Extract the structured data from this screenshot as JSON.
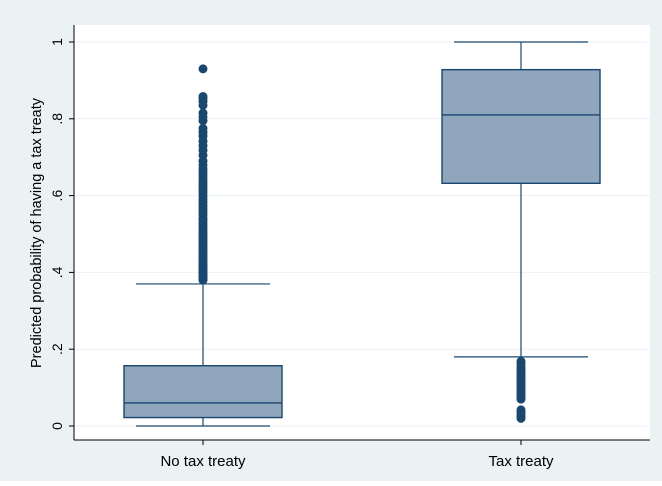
{
  "chart_data": {
    "type": "box",
    "ylabel": "Predicted probability of having a tax treaty",
    "ylim": [
      0,
      1
    ],
    "yticks": [
      {
        "value": 0,
        "label": "0"
      },
      {
        "value": 0.2,
        "label": ".2"
      },
      {
        "value": 0.4,
        "label": ".4"
      },
      {
        "value": 0.6,
        "label": ".6"
      },
      {
        "value": 0.8,
        "label": ".8"
      },
      {
        "value": 1,
        "label": "1"
      }
    ],
    "grid": true,
    "categories": [
      "No tax treaty",
      "Tax treaty"
    ],
    "boxes": [
      {
        "category": "No tax treaty",
        "whisker_low": 0.0,
        "q1": 0.022,
        "median": 0.06,
        "q3": 0.157,
        "whisker_high": 0.37,
        "outliers": [
          0.38,
          0.383,
          0.386,
          0.39,
          0.394,
          0.398,
          0.402,
          0.406,
          0.41,
          0.415,
          0.42,
          0.425,
          0.43,
          0.435,
          0.44,
          0.446,
          0.452,
          0.458,
          0.464,
          0.47,
          0.476,
          0.482,
          0.488,
          0.494,
          0.5,
          0.507,
          0.514,
          0.521,
          0.528,
          0.535,
          0.542,
          0.55,
          0.558,
          0.566,
          0.574,
          0.582,
          0.59,
          0.598,
          0.606,
          0.614,
          0.622,
          0.63,
          0.638,
          0.646,
          0.654,
          0.662,
          0.67,
          0.68,
          0.69,
          0.705,
          0.718,
          0.73,
          0.742,
          0.755,
          0.765,
          0.775,
          0.795,
          0.805,
          0.815,
          0.835,
          0.845,
          0.853,
          0.858,
          0.93
        ]
      },
      {
        "category": "Tax treaty",
        "whisker_low": 0.18,
        "q1": 0.632,
        "median": 0.81,
        "q3": 0.928,
        "whisker_high": 1.0,
        "outliers": [
          0.02,
          0.025,
          0.03,
          0.036,
          0.042,
          0.07,
          0.076,
          0.082,
          0.088,
          0.094,
          0.1,
          0.106,
          0.112,
          0.118,
          0.124,
          0.13,
          0.136,
          0.142,
          0.148,
          0.155,
          0.162,
          0.168
        ]
      }
    ],
    "colors": {
      "frame_background": "#eaf2f3",
      "plot_background": "#ffffff",
      "box_fill": "#8fa6bc",
      "box_stroke": "#1a476f",
      "grid": "#eaf2f3",
      "text": "#000000"
    }
  }
}
